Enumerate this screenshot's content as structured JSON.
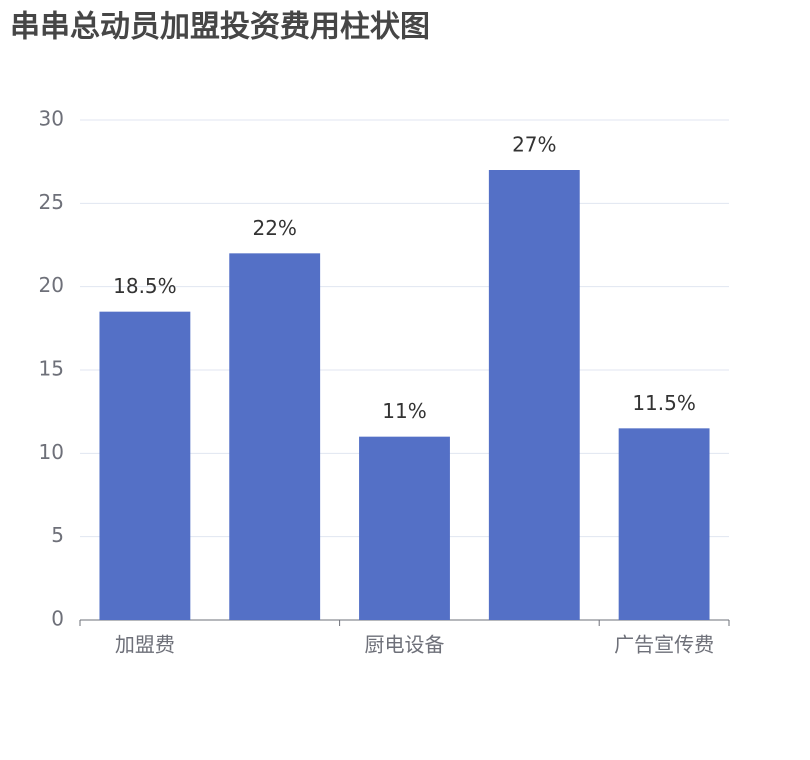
{
  "chart_data": {
    "type": "bar",
    "title": "串串总动员加盟投资费用柱状图",
    "categories": [
      "加盟费",
      null,
      "厨电设备",
      null,
      "广告宣传费"
    ],
    "values": [
      18.5,
      22,
      11,
      27,
      11.5
    ],
    "value_labels": [
      "18.5%",
      "22%",
      "11%",
      "27%",
      "11.5%"
    ],
    "color": "#5470c6",
    "ylim": [
      0,
      30
    ],
    "yticks": [
      0,
      5,
      10,
      15,
      20,
      25,
      30
    ],
    "grid": true
  }
}
